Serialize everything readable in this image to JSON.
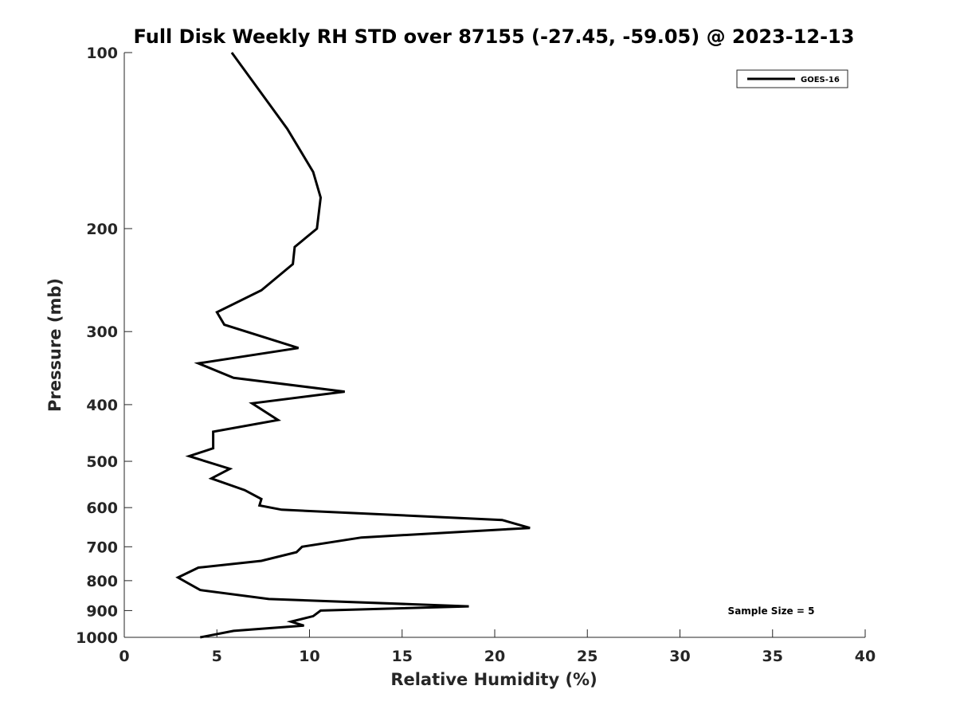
{
  "chart_data": {
    "type": "line",
    "title": "Full Disk Weekly RH STD over 87155 (-27.45, -59.05) @ 2023-12-13",
    "xlabel": "Relative Humidity (%)",
    "ylabel": "Pressure (mb)",
    "xlim": [
      0,
      40
    ],
    "ylim": [
      100,
      1000
    ],
    "yscale": "log",
    "y_reversed": true,
    "xticks": [
      0,
      5,
      10,
      15,
      20,
      25,
      30,
      35,
      40
    ],
    "yticks": [
      100,
      200,
      300,
      400,
      500,
      600,
      700,
      800,
      900,
      1000
    ],
    "grid": false,
    "legend_position": "top-right",
    "annotation": "Sample Size = 5",
    "series": [
      {
        "name": "GOES-16",
        "color": "#000000",
        "points": [
          [
            5.8,
            100
          ],
          [
            7.2,
            115
          ],
          [
            8.8,
            135
          ],
          [
            10.2,
            160
          ],
          [
            10.6,
            177
          ],
          [
            10.4,
            200
          ],
          [
            9.2,
            215
          ],
          [
            9.1,
            230
          ],
          [
            7.4,
            255
          ],
          [
            5.0,
            278
          ],
          [
            5.4,
            292
          ],
          [
            9.4,
            320
          ],
          [
            4.0,
            340
          ],
          [
            5.9,
            360
          ],
          [
            11.9,
            380
          ],
          [
            6.9,
            398
          ],
          [
            8.3,
            425
          ],
          [
            4.8,
            445
          ],
          [
            4.8,
            475
          ],
          [
            3.5,
            490
          ],
          [
            5.7,
            515
          ],
          [
            4.7,
            535
          ],
          [
            6.5,
            560
          ],
          [
            7.4,
            580
          ],
          [
            7.3,
            595
          ],
          [
            8.5,
            605
          ],
          [
            20.4,
            630
          ],
          [
            21.9,
            650
          ],
          [
            12.8,
            675
          ],
          [
            9.6,
            700
          ],
          [
            9.3,
            715
          ],
          [
            7.4,
            740
          ],
          [
            4.0,
            760
          ],
          [
            2.9,
            790
          ],
          [
            3.5,
            810
          ],
          [
            4.1,
            830
          ],
          [
            7.8,
            860
          ],
          [
            18.6,
            885
          ],
          [
            10.6,
            900
          ],
          [
            10.2,
            920
          ],
          [
            9.0,
            940
          ],
          [
            9.7,
            955
          ],
          [
            5.9,
            975
          ],
          [
            4.1,
            1000
          ]
        ]
      }
    ]
  }
}
